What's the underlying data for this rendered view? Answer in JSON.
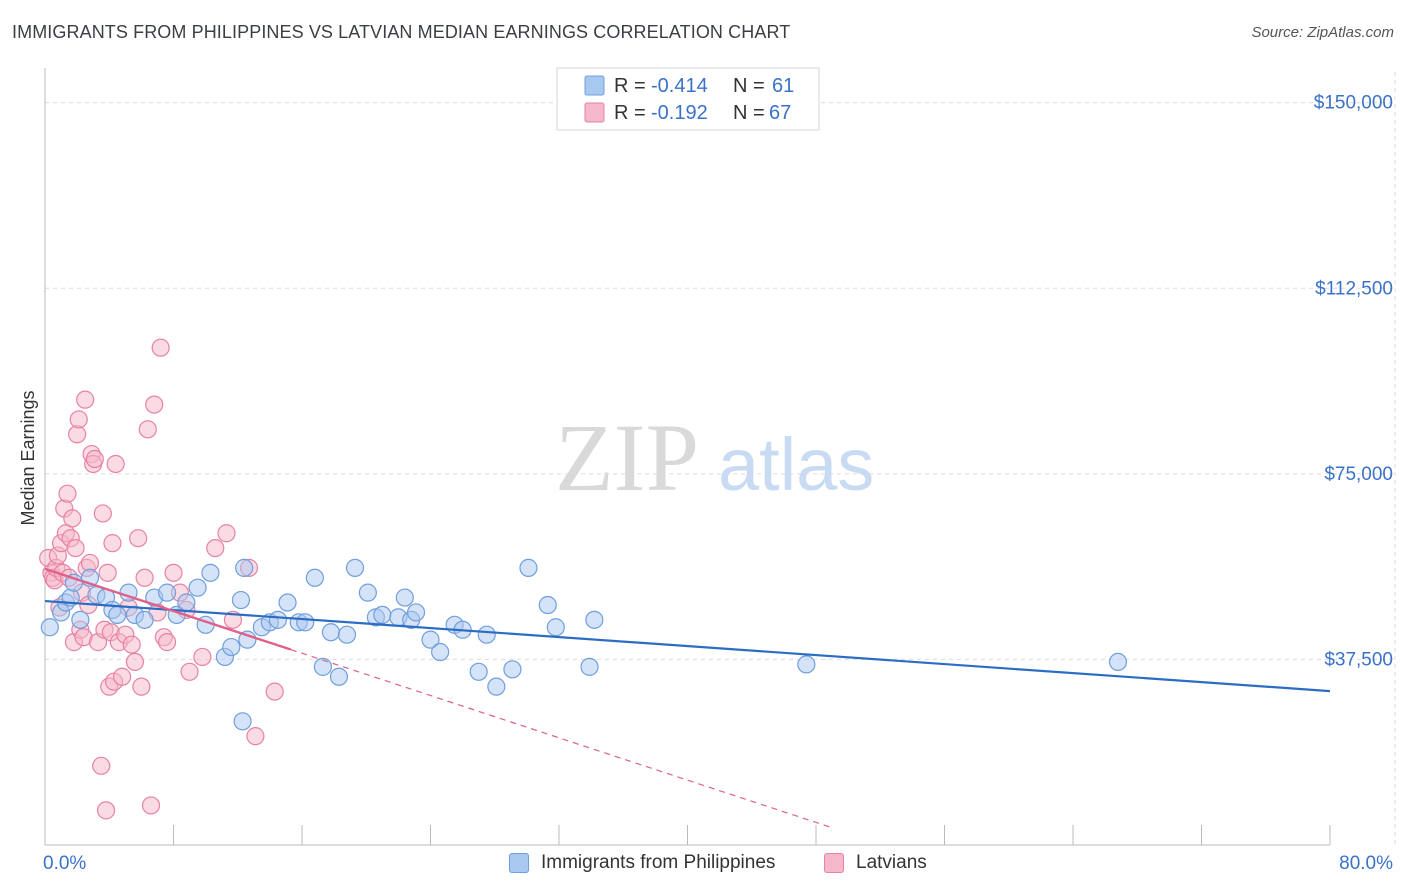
{
  "title": "IMMIGRANTS FROM PHILIPPINES VS LATVIAN MEDIAN EARNINGS CORRELATION CHART",
  "source": "Source: ZipAtlas.com",
  "watermark": {
    "zip": "ZIP",
    "atlas": "atlas"
  },
  "colors": {
    "blue_fill": "#a9c8f0",
    "blue_stroke": "#6f9fdc",
    "blue_line": "#2b6cc4",
    "pink_fill": "#f5b8ca",
    "pink_stroke": "#e882a3",
    "pink_line": "#e0608a",
    "axis_label": "#3a72c8",
    "grid": "#dcdcdc"
  },
  "legend_top": [
    {
      "r_label": "R = ",
      "r_value": "-0.414",
      "n_label": "N = ",
      "n_value": "61"
    },
    {
      "r_label": "R = ",
      "r_value": "-0.192",
      "n_label": "N = ",
      "n_value": "67"
    }
  ],
  "chart_data": {
    "type": "scatter",
    "xlabel": "",
    "ylabel": "Median Earnings",
    "xlim": [
      0,
      80
    ],
    "ylim": [
      0,
      155000
    ],
    "x_tick_labels": [
      "0.0%",
      "80.0%"
    ],
    "y_ticks": [
      37500,
      75000,
      112500,
      150000
    ],
    "y_tick_labels": [
      "$37,500",
      "$75,000",
      "$112,500",
      "$150,000"
    ],
    "grid": true,
    "legend_position": "top-center",
    "series": [
      {
        "name": "Immigrants from Philippines",
        "color": "#a9c8f0",
        "trend": {
          "x0": 0,
          "y0": 49300,
          "x1": 80,
          "y1": 31100
        },
        "points": [
          [
            0.3,
            44000
          ],
          [
            1.0,
            47000
          ],
          [
            1.3,
            49000
          ],
          [
            1.6,
            50000
          ],
          [
            1.8,
            53000
          ],
          [
            2.2,
            45500
          ],
          [
            2.8,
            54000
          ],
          [
            3.2,
            50500
          ],
          [
            3.8,
            50000
          ],
          [
            4.2,
            47500
          ],
          [
            4.5,
            46500
          ],
          [
            5.2,
            51000
          ],
          [
            5.6,
            46500
          ],
          [
            6.2,
            45500
          ],
          [
            6.8,
            50000
          ],
          [
            7.6,
            51000
          ],
          [
            8.2,
            46500
          ],
          [
            8.8,
            49000
          ],
          [
            9.5,
            52000
          ],
          [
            10.0,
            44500
          ],
          [
            10.3,
            55000
          ],
          [
            11.2,
            38000
          ],
          [
            11.6,
            40000
          ],
          [
            12.2,
            49500
          ],
          [
            12.6,
            41500
          ],
          [
            12.4,
            56000
          ],
          [
            13.5,
            44000
          ],
          [
            14.0,
            45000
          ],
          [
            14.5,
            45500
          ],
          [
            15.1,
            49000
          ],
          [
            15.8,
            45000
          ],
          [
            16.2,
            45000
          ],
          [
            16.8,
            54000
          ],
          [
            17.3,
            36000
          ],
          [
            17.8,
            43000
          ],
          [
            18.3,
            34000
          ],
          [
            18.8,
            42500
          ],
          [
            19.3,
            56000
          ],
          [
            20.1,
            51000
          ],
          [
            20.6,
            46000
          ],
          [
            21.0,
            46500
          ],
          [
            22.0,
            46000
          ],
          [
            22.4,
            50000
          ],
          [
            22.8,
            45500
          ],
          [
            23.1,
            47000
          ],
          [
            24.0,
            41500
          ],
          [
            24.6,
            39000
          ],
          [
            25.5,
            44500
          ],
          [
            26.0,
            43500
          ],
          [
            27.0,
            35000
          ],
          [
            27.5,
            42500
          ],
          [
            28.1,
            32000
          ],
          [
            29.1,
            35500
          ],
          [
            30.1,
            56000
          ],
          [
            31.3,
            48500
          ],
          [
            31.8,
            44000
          ],
          [
            33.9,
            36000
          ],
          [
            34.2,
            45500
          ],
          [
            47.4,
            36500
          ],
          [
            66.8,
            37000
          ],
          [
            12.3,
            25000
          ]
        ]
      },
      {
        "name": "Latvians",
        "color": "#f5b8ca",
        "trend": {
          "x0": 0,
          "y0": 55800,
          "x1": 15.3,
          "y1": 39500,
          "ext_x1": 49.0,
          "ext_y1": 3500
        },
        "points": [
          [
            0.2,
            58000
          ],
          [
            0.4,
            55000
          ],
          [
            0.5,
            54000
          ],
          [
            0.6,
            53500
          ],
          [
            0.7,
            56000
          ],
          [
            0.8,
            58500
          ],
          [
            0.9,
            48000
          ],
          [
            1.0,
            61000
          ],
          [
            1.1,
            55000
          ],
          [
            1.2,
            68000
          ],
          [
            1.3,
            63000
          ],
          [
            1.4,
            71000
          ],
          [
            1.5,
            54000
          ],
          [
            1.6,
            62000
          ],
          [
            1.7,
            66000
          ],
          [
            1.8,
            41000
          ],
          [
            1.9,
            60000
          ],
          [
            2.0,
            83000
          ],
          [
            2.1,
            86000
          ],
          [
            2.2,
            43500
          ],
          [
            2.3,
            51000
          ],
          [
            2.4,
            42000
          ],
          [
            2.5,
            90000
          ],
          [
            2.6,
            56000
          ],
          [
            2.7,
            48500
          ],
          [
            2.8,
            57000
          ],
          [
            2.9,
            79000
          ],
          [
            3.0,
            77000
          ],
          [
            3.1,
            78000
          ],
          [
            3.3,
            41000
          ],
          [
            3.5,
            16000
          ],
          [
            3.6,
            67000
          ],
          [
            3.7,
            43500
          ],
          [
            3.8,
            7000
          ],
          [
            3.9,
            55000
          ],
          [
            4.0,
            32000
          ],
          [
            4.1,
            43000
          ],
          [
            4.2,
            61000
          ],
          [
            4.3,
            33000
          ],
          [
            4.4,
            77000
          ],
          [
            4.6,
            41000
          ],
          [
            4.8,
            34000
          ],
          [
            5.0,
            42500
          ],
          [
            5.2,
            48000
          ],
          [
            5.4,
            40500
          ],
          [
            5.6,
            37000
          ],
          [
            5.8,
            62000
          ],
          [
            6.0,
            32000
          ],
          [
            6.2,
            54000
          ],
          [
            6.4,
            84000
          ],
          [
            6.6,
            8000
          ],
          [
            6.8,
            89000
          ],
          [
            7.0,
            47000
          ],
          [
            7.2,
            100500
          ],
          [
            7.4,
            42000
          ],
          [
            7.6,
            41000
          ],
          [
            8.0,
            55000
          ],
          [
            8.4,
            51000
          ],
          [
            8.8,
            47500
          ],
          [
            9.0,
            35000
          ],
          [
            9.8,
            38000
          ],
          [
            10.6,
            60000
          ],
          [
            11.3,
            63000
          ],
          [
            11.7,
            45500
          ],
          [
            12.7,
            56000
          ],
          [
            13.1,
            22000
          ],
          [
            14.3,
            31000
          ]
        ]
      }
    ]
  }
}
